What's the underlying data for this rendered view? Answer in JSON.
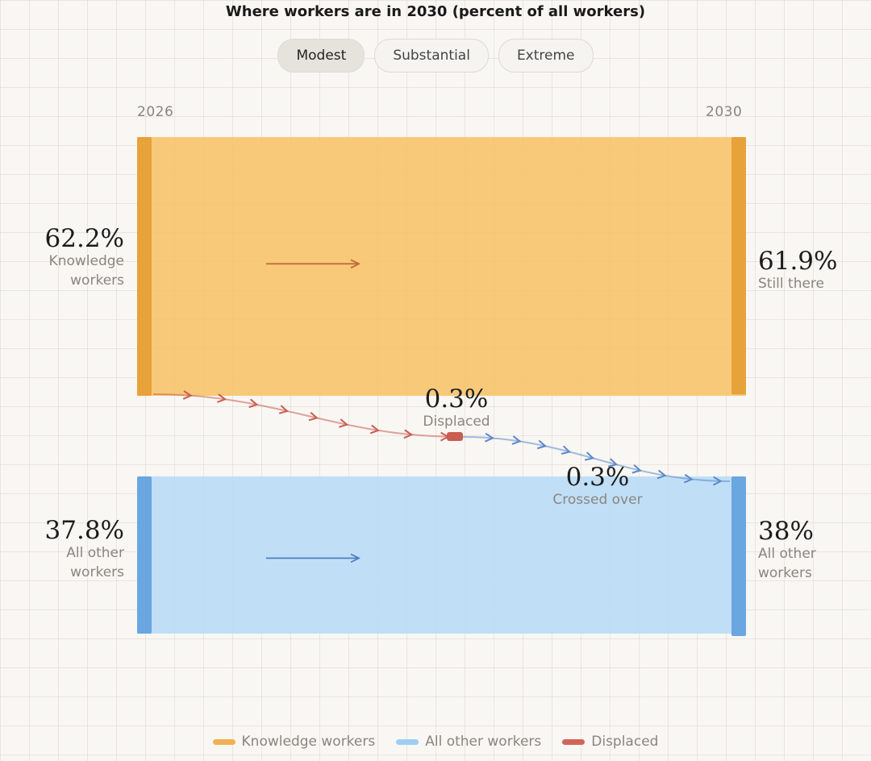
{
  "title": "Where workers are in 2030 (percent of all workers)",
  "scenarios": [
    {
      "label": "Modest",
      "selected": true
    },
    {
      "label": "Substantial",
      "selected": false
    },
    {
      "label": "Extreme",
      "selected": false
    }
  ],
  "colors": {
    "knowledge": "#f6c36c",
    "knowledge_edge": "#e8a23a",
    "other": "#b9dcf7",
    "other_edge": "#6aa6e0",
    "displaced": "#c95d52",
    "crossed": "#5b88c9"
  },
  "chart_data": {
    "type": "flow",
    "x_labels": [
      "2026",
      "2030"
    ],
    "nodes_2026": [
      {
        "name": "Knowledge workers",
        "value": 62.2,
        "value_label": "62.2%",
        "label": [
          "Knowledge",
          "workers"
        ]
      },
      {
        "name": "All other workers",
        "value": 37.8,
        "value_label": "37.8%",
        "label": [
          "All other",
          "workers"
        ]
      }
    ],
    "nodes_2030": [
      {
        "name": "Still there",
        "value": 61.9,
        "value_label": "61.9%",
        "label": [
          "Still there"
        ]
      },
      {
        "name": "All other workers",
        "value": 38,
        "value_label": "38%",
        "label": [
          "All other",
          "workers"
        ]
      }
    ],
    "flows": [
      {
        "from": "Knowledge workers",
        "to": "Displaced",
        "value": 0.3,
        "value_label": "0.3%",
        "label": "Displaced"
      },
      {
        "from": "Displaced",
        "to": "All other workers",
        "value": 0.3,
        "value_label": "0.3%",
        "label": "Crossed over"
      }
    ],
    "legend": [
      {
        "label": "Knowledge workers",
        "color": "#f0b154"
      },
      {
        "label": "All other workers",
        "color": "#9fcdf3"
      },
      {
        "label": "Displaced",
        "color": "#d0665b"
      }
    ]
  }
}
